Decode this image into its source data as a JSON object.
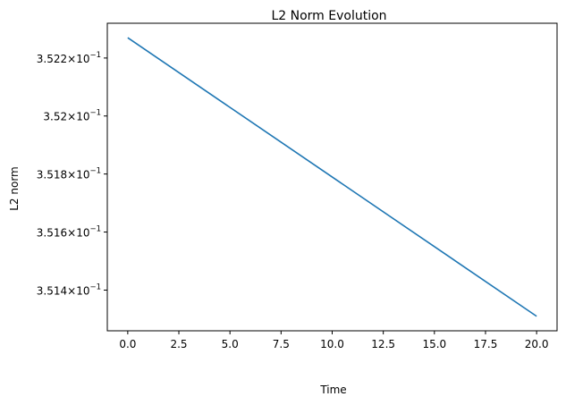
{
  "chart_data": {
    "type": "line",
    "title": "L2 Norm Evolution",
    "xlabel": "Time",
    "ylabel": "L2 norm",
    "yscale": "log",
    "xlim": [
      -1.0,
      21.0
    ],
    "ylim": [
      0.35126,
      0.35232
    ],
    "grid": false,
    "x_ticks": [
      {
        "value": 0.0,
        "label": "0.0"
      },
      {
        "value": 2.5,
        "label": "2.5"
      },
      {
        "value": 5.0,
        "label": "5.0"
      },
      {
        "value": 7.5,
        "label": "7.5"
      },
      {
        "value": 10.0,
        "label": "10.0"
      },
      {
        "value": 12.5,
        "label": "12.5"
      },
      {
        "value": 15.0,
        "label": "15.0"
      },
      {
        "value": 17.5,
        "label": "17.5"
      },
      {
        "value": 20.0,
        "label": "20.0"
      }
    ],
    "y_ticks": [
      {
        "value": 0.3514,
        "mantissa": "3.514",
        "base": "10",
        "exponent": "−1"
      },
      {
        "value": 0.3516,
        "mantissa": "3.516",
        "base": "10",
        "exponent": "−1"
      },
      {
        "value": 0.3518,
        "mantissa": "3.518",
        "base": "10",
        "exponent": "−1"
      },
      {
        "value": 0.352,
        "mantissa": "3.52",
        "base": "10",
        "exponent": "−1"
      },
      {
        "value": 0.3522,
        "mantissa": "3.522",
        "base": "10",
        "exponent": "−1"
      }
    ],
    "series": [
      {
        "color": "#1f77b4",
        "x": [
          0.0,
          20.0
        ],
        "y": [
          0.35227,
          0.35131
        ]
      }
    ]
  }
}
